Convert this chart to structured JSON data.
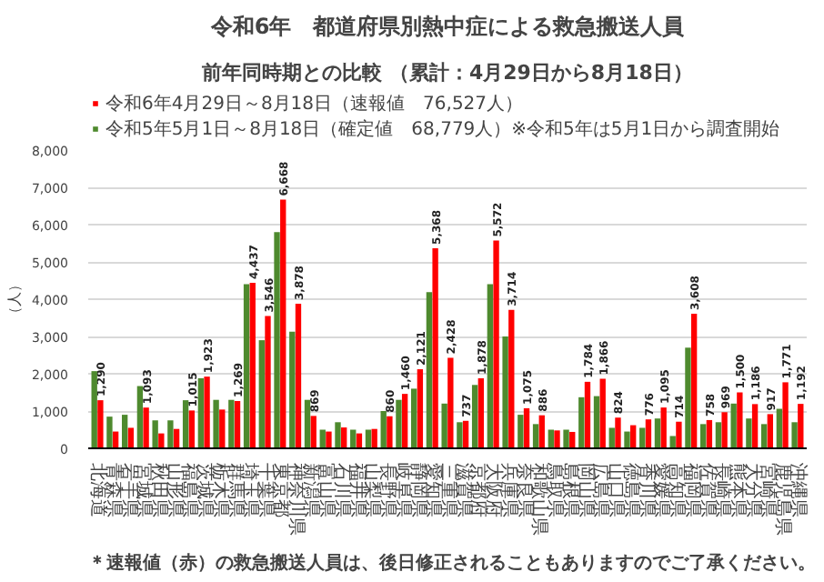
{
  "chart_data": {
    "type": "bar",
    "title": "令和6年　都道府県別熱中症による救急搬送人員",
    "subtitle": "前年同時期との比較 （累計：4月29日から8月18日）",
    "ylabel": "（人）",
    "categories": [
      "北海道",
      "青森県",
      "岩手県",
      "宮城県",
      "秋田県",
      "山形県",
      "福島県",
      "茨城県",
      "栃木県",
      "群馬県",
      "埼玉県",
      "千葉県",
      "東京都",
      "神奈川県",
      "新潟県",
      "富山県",
      "石川県",
      "福井県",
      "山梨県",
      "長野県",
      "岐阜県",
      "静岡県",
      "愛知県",
      "三重県",
      "滋賀県",
      "京都府",
      "大阪府",
      "兵庫県",
      "奈良県",
      "和歌山県",
      "鳥取県",
      "島根県",
      "岡山県",
      "広島県",
      "山口県",
      "徳島県",
      "香川県",
      "愛媛県",
      "高知県",
      "福岡県",
      "佐賀県",
      "長崎県",
      "熊本県",
      "大分県",
      "宮崎県",
      "鹿児島県",
      "沖縄県"
    ],
    "series": [
      {
        "name": "令和6年4月29日～8月18日（速報値　76,527人）",
        "color": "#ff0000",
        "values": [
          1290,
          450,
          550,
          1093,
          400,
          520,
          1015,
          1923,
          1040,
          1269,
          4437,
          3546,
          6668,
          3878,
          869,
          450,
          560,
          400,
          520,
          860,
          1460,
          2121,
          5368,
          2428,
          737,
          1878,
          5572,
          3714,
          1075,
          886,
          480,
          440,
          1784,
          1866,
          824,
          620,
          776,
          1095,
          714,
          3608,
          758,
          969,
          1500,
          1186,
          917,
          1771,
          1192
        ],
        "value_labels": [
          "1,290",
          null,
          null,
          "1,093",
          null,
          null,
          "1,015",
          "1,923",
          null,
          "1,269",
          "4,437",
          "3,546",
          "6,668",
          "3,878",
          "869",
          null,
          null,
          null,
          null,
          "860",
          "1,460",
          "2,121",
          "5,368",
          "2,428",
          "737",
          "1,878",
          "5,572",
          "3,714",
          "1,075",
          "886",
          null,
          null,
          "1,784",
          "1,866",
          "824",
          null,
          "776",
          "1,095",
          "714",
          "3,608",
          "758",
          "969",
          "1,500",
          "1,186",
          "917",
          "1,771",
          "1,192"
        ]
      },
      {
        "name": "令和5年5月1日～8月18日（確定値　68,779人）※令和5年は5月1日から調査開始",
        "color": "#4e8a2e",
        "values": [
          2070,
          850,
          900,
          1670,
          750,
          750,
          1290,
          1880,
          1300,
          1300,
          4400,
          2900,
          5800,
          3130,
          1300,
          500,
          700,
          500,
          500,
          1000,
          1300,
          1600,
          4190,
          1200,
          700,
          1700,
          4400,
          3000,
          900,
          650,
          500,
          500,
          1370,
          1400,
          550,
          450,
          550,
          800,
          330,
          2700,
          650,
          700,
          1200,
          800,
          650,
          1060,
          700
        ]
      }
    ],
    "ylim": [
      0,
      8000
    ],
    "yticks": [
      {
        "value": 0,
        "label": "0"
      },
      {
        "value": 1000,
        "label": "1,000"
      },
      {
        "value": 2000,
        "label": "2,000"
      },
      {
        "value": 3000,
        "label": "3,000"
      },
      {
        "value": 4000,
        "label": "4,000"
      },
      {
        "value": 5000,
        "label": "5,000"
      },
      {
        "value": 6000,
        "label": "6,000"
      },
      {
        "value": 7000,
        "label": "7,000"
      },
      {
        "value": 8000,
        "label": "8,000"
      }
    ],
    "grid": "y",
    "legend": "top",
    "annotations": [
      "＊速報値（赤）の救急搬送人員は、後日修正されることもありますのでご了承ください。"
    ]
  }
}
